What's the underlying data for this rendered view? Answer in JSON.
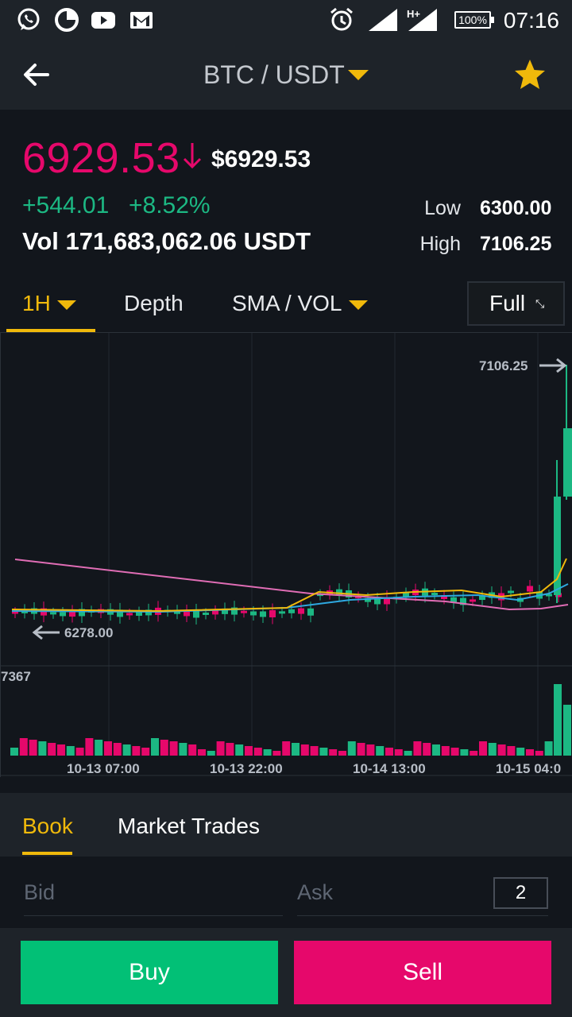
{
  "status_bar": {
    "time": "07:16",
    "battery": "100%",
    "icons": [
      "whatsapp-icon",
      "data-saver-icon",
      "youtube-icon",
      "gmail-icon",
      "alarm-icon",
      "signal-icon",
      "hplus-signal-icon",
      "battery-icon"
    ]
  },
  "header": {
    "pair": "BTC / USDT",
    "icons": [
      "back-arrow-icon",
      "dropdown-caret-icon",
      "favorite-star-icon"
    ]
  },
  "ticker": {
    "last_price": "6929.53",
    "usd_price": "$6929.53",
    "change": "+544.01",
    "change_pct": "+8.52%",
    "volume": "Vol 171,683,062.06 USDT",
    "low_label": "Low",
    "low_value": "6300.00",
    "high_label": "High",
    "high_value": "7106.25"
  },
  "interval_tabs": {
    "interval": "1H",
    "depth": "Depth",
    "indicator": "SMA / VOL",
    "full": "Full"
  },
  "chart": {
    "high_marker": "7106.25",
    "low_marker": "6278.00",
    "volume_max_label": "7367",
    "x_labels": [
      "10-13 07:00",
      "10-13 22:00",
      "10-14 13:00",
      "10-15 04:0"
    ]
  },
  "chart_data": {
    "type": "candlestick",
    "x_ticks": [
      "10-13 07:00",
      "10-13 22:00",
      "10-14 13:00",
      "10-15 04:0"
    ],
    "price_range": [
      6278.0,
      7106.25
    ],
    "volume_max": 7367,
    "up_color": "#1cb883",
    "down_color": "#e6086b",
    "ma_colors": [
      "#f0b90b",
      "#2ea8e0",
      "#e06db5"
    ]
  },
  "book": {
    "tab_book": "Book",
    "tab_trades": "Market Trades",
    "bid": "Bid",
    "ask": "Ask",
    "depth_value": "2"
  },
  "actions": {
    "buy": "Buy",
    "sell": "Sell"
  },
  "colors": {
    "accent": "#f0b90b",
    "up": "#1cb883",
    "down": "#e6086b",
    "buy": "#02c076",
    "sell": "#e6086b",
    "background": "#12161c",
    "panel": "#1e2329"
  }
}
